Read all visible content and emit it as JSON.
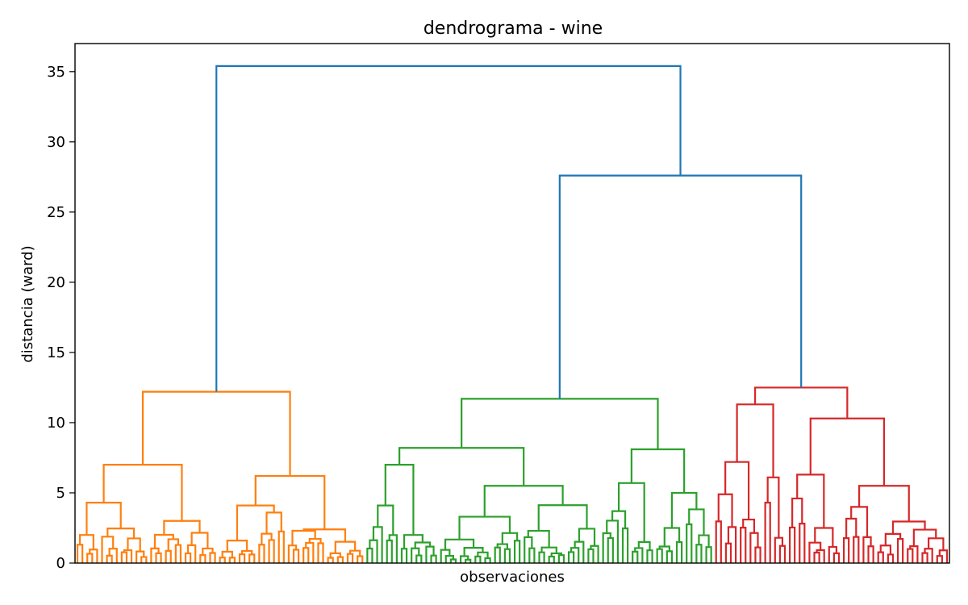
{
  "chart_data": {
    "type": "dendrogram",
    "title": "dendrograma - wine",
    "xlabel": "observaciones",
    "ylabel": "distancia (ward)",
    "ylim": [
      0,
      37
    ],
    "yticks": [
      0,
      5,
      10,
      15,
      20,
      25,
      30,
      35
    ],
    "colors": {
      "root": "#1f77b4",
      "c1": "#ff7f0e",
      "c2": "#2ca02c",
      "c3": "#d62728"
    },
    "root_height": 35.4,
    "second_merge_height": 27.6,
    "clusters": [
      {
        "color": "c1",
        "height": 12.2,
        "sub_heights": [
          7.0,
          6.2,
          4.3,
          4.1,
          3.0,
          2.4,
          2.0,
          1.6,
          10.1,
          8.2,
          5.6,
          5.1,
          4.9,
          3.6,
          3.0,
          2.3
        ]
      },
      {
        "color": "c2",
        "height": 11.7,
        "sub_heights": [
          8.2,
          8.1,
          7.0,
          5.7,
          5.5,
          5.0,
          4.1,
          3.7,
          3.3,
          2.5,
          2.0,
          1.5
        ]
      },
      {
        "color": "c3",
        "height": 12.5,
        "sub_heights": [
          11.3,
          10.3,
          7.2,
          6.3,
          6.1,
          5.5,
          4.9,
          4.6,
          4.3,
          4.0,
          3.1,
          2.5,
          1.8
        ]
      }
    ]
  }
}
